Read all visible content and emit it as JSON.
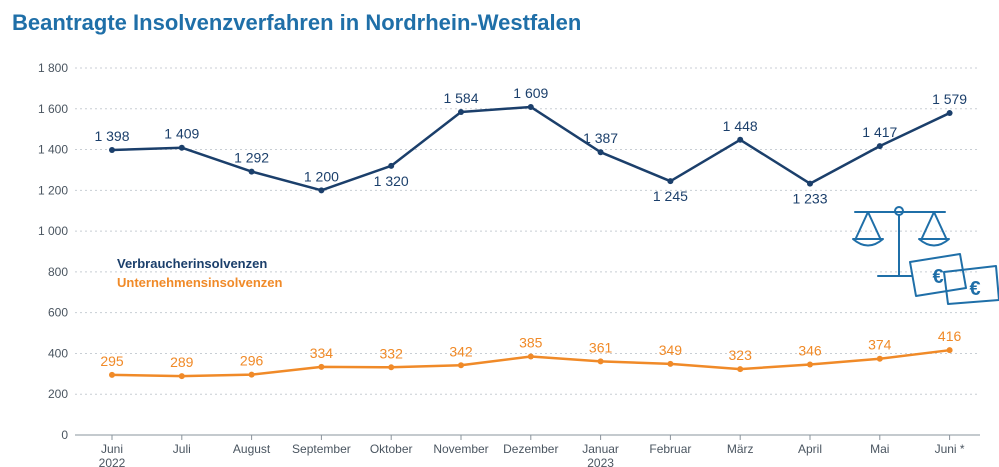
{
  "chart_data": {
    "type": "line",
    "title": "Beantragte Insolvenzverfahren in Nordrhein-Westfalen",
    "categories": [
      {
        "line1": "Juni",
        "line2": "2022"
      },
      {
        "line1": "Juli",
        "line2": ""
      },
      {
        "line1": "August",
        "line2": ""
      },
      {
        "line1": "September",
        "line2": ""
      },
      {
        "line1": "Oktober",
        "line2": ""
      },
      {
        "line1": "November",
        "line2": ""
      },
      {
        "line1": "Dezember",
        "line2": ""
      },
      {
        "line1": "Januar",
        "line2": "2023"
      },
      {
        "line1": "Februar",
        "line2": ""
      },
      {
        "line1": "März",
        "line2": ""
      },
      {
        "line1": "April",
        "line2": ""
      },
      {
        "line1": "Mai",
        "line2": ""
      },
      {
        "line1": "Juni *",
        "line2": ""
      }
    ],
    "series": [
      {
        "name": "Verbraucherinsolvenzen",
        "color": "#1b3f6b",
        "values": [
          1398,
          1409,
          1292,
          1200,
          1320,
          1584,
          1609,
          1387,
          1245,
          1448,
          1233,
          1417,
          1579
        ],
        "labels": [
          "1 398",
          "1 409",
          "1 292",
          "1 200",
          "1 320",
          "1 584",
          "1 609",
          "1 387",
          "1 245",
          "1 448",
          "1 233",
          "1 417",
          "1 579"
        ],
        "label_pos": [
          "above",
          "above",
          "above",
          "above",
          "below",
          "above",
          "above",
          "above",
          "below",
          "above",
          "below",
          "above",
          "above"
        ]
      },
      {
        "name": "Unternehmensinsolvenzen",
        "color": "#f08a28",
        "values": [
          295,
          289,
          296,
          334,
          332,
          342,
          385,
          361,
          349,
          323,
          346,
          374,
          416
        ],
        "labels": [
          "295",
          "289",
          "296",
          "334",
          "332",
          "342",
          "385",
          "361",
          "349",
          "323",
          "346",
          "374",
          "416"
        ],
        "label_pos": [
          "above",
          "above",
          "above",
          "above",
          "above",
          "above",
          "above",
          "above",
          "above",
          "above",
          "above",
          "above",
          "above"
        ]
      }
    ],
    "y_ticks": [
      {
        "value": 0,
        "label": "0"
      },
      {
        "value": 200,
        "label": "200"
      },
      {
        "value": 400,
        "label": "400"
      },
      {
        "value": 600,
        "label": "600"
      },
      {
        "value": 800,
        "label": "800"
      },
      {
        "value": 1000,
        "label": "1 000"
      },
      {
        "value": 1200,
        "label": "1 200"
      },
      {
        "value": 1400,
        "label": "1 400"
      },
      {
        "value": 1600,
        "label": "1 600"
      },
      {
        "value": 1800,
        "label": "1 800"
      }
    ],
    "ylim": [
      0,
      1800
    ],
    "grid": true,
    "legend_position": "left-center",
    "icon": "scales-with-euro-notes-icon",
    "icon_symbol": "€",
    "colors": {
      "title": "#1f6fa8",
      "grid": "#c8ced4",
      "icon": "#1f6fa8"
    }
  }
}
